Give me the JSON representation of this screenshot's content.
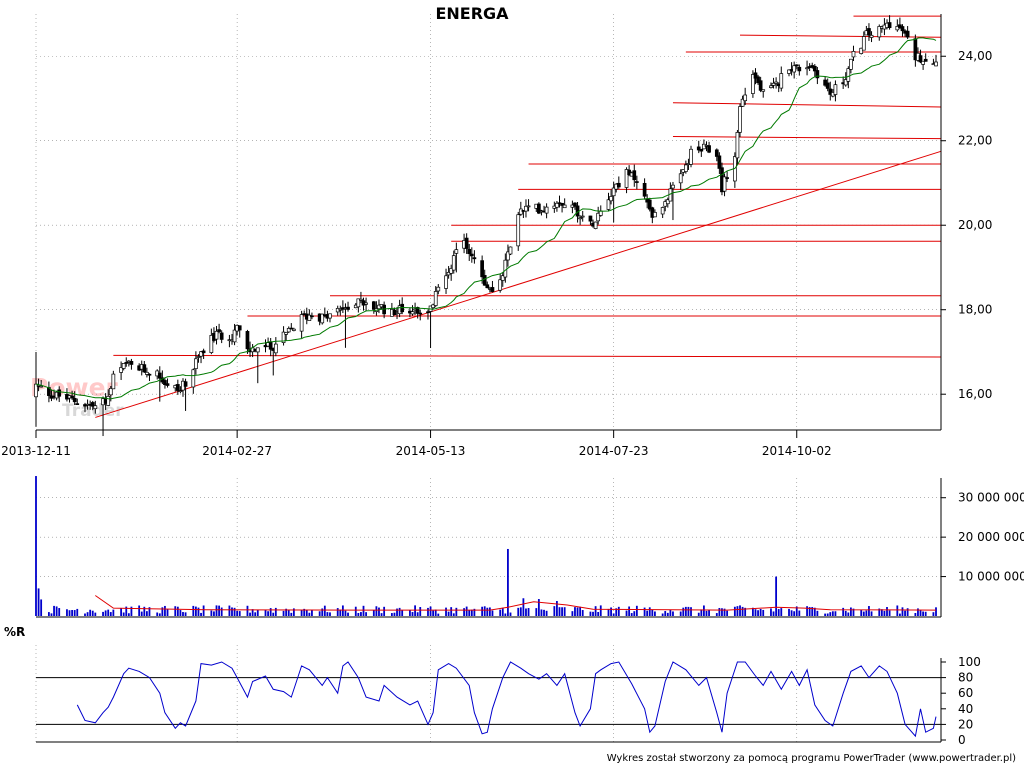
{
  "chart_data": [
    {
      "type": "candlestick",
      "title": "ENERGA",
      "x_tick_labels": [
        "2013-12-11",
        "2014-02-27",
        "2014-05-13",
        "2014-07-23",
        "2014-10-02"
      ],
      "x_dates": [
        "2013-12-11",
        "2014-02-27",
        "2014-05-13",
        "2014-07-23",
        "2014-10-02",
        "2014-11-25"
      ],
      "y_ticks": [
        16,
        18,
        20,
        22,
        24
      ],
      "y_tick_labels": [
        "16,00",
        "18,00",
        "20,00",
        "22,00",
        "24,00"
      ],
      "ylim": [
        15.2,
        25.0
      ],
      "close_path": [
        [
          "2013-12-11",
          16.2
        ],
        [
          "2013-12-17",
          16.0
        ],
        [
          "2013-12-23",
          15.9
        ],
        [
          "2014-01-03",
          15.7
        ],
        [
          "2014-01-08",
          15.9
        ],
        [
          "2014-01-10",
          16.4
        ],
        [
          "2014-01-15",
          16.7
        ],
        [
          "2014-01-20",
          16.6
        ],
        [
          "2014-01-27",
          16.5
        ],
        [
          "2014-01-31",
          16.2
        ],
        [
          "2014-02-05",
          16.1
        ],
        [
          "2014-02-10",
          16.6
        ],
        [
          "2014-02-14",
          17.1
        ],
        [
          "2014-02-19",
          17.4
        ],
        [
          "2014-02-25",
          17.4
        ],
        [
          "2014-02-27",
          17.6
        ],
        [
          "2014-03-03",
          17.0
        ],
        [
          "2014-03-07",
          17.1
        ],
        [
          "2014-03-12",
          17.1
        ],
        [
          "2014-03-18",
          17.4
        ],
        [
          "2014-03-24",
          17.8
        ],
        [
          "2014-03-28",
          17.9
        ],
        [
          "2014-04-02",
          17.8
        ],
        [
          "2014-04-08",
          18.0
        ],
        [
          "2014-04-14",
          18.2
        ],
        [
          "2014-04-18",
          18.1
        ],
        [
          "2014-04-25",
          18.0
        ],
        [
          "2014-05-02",
          18.0
        ],
        [
          "2014-05-09",
          18.0
        ],
        [
          "2014-05-13",
          18.0
        ],
        [
          "2014-05-16",
          18.5
        ],
        [
          "2014-05-21",
          19.1
        ],
        [
          "2014-05-26",
          19.6
        ],
        [
          "2014-05-30",
          19.2
        ],
        [
          "2014-06-04",
          18.5
        ],
        [
          "2014-06-09",
          18.6
        ],
        [
          "2014-06-12",
          19.3
        ],
        [
          "2014-06-16",
          20.3
        ],
        [
          "2014-06-20",
          20.4
        ],
        [
          "2014-06-26",
          20.4
        ],
        [
          "2014-07-02",
          20.6
        ],
        [
          "2014-07-08",
          20.4
        ],
        [
          "2014-07-14",
          20.0
        ],
        [
          "2014-07-18",
          20.4
        ],
        [
          "2014-07-23",
          20.9
        ],
        [
          "2014-07-28",
          21.2
        ],
        [
          "2014-08-01",
          21.1
        ],
        [
          "2014-08-05",
          20.5
        ],
        [
          "2014-08-08",
          20.2
        ],
        [
          "2014-08-12",
          20.6
        ],
        [
          "2014-08-18",
          21.1
        ],
        [
          "2014-08-22",
          21.7
        ],
        [
          "2014-08-27",
          21.8
        ],
        [
          "2014-09-01",
          21.7
        ],
        [
          "2014-09-03",
          20.9
        ],
        [
          "2014-09-08",
          21.6
        ],
        [
          "2014-09-10",
          22.8
        ],
        [
          "2014-09-15",
          23.6
        ],
        [
          "2014-09-19",
          23.1
        ],
        [
          "2014-09-24",
          23.3
        ],
        [
          "2014-09-29",
          23.8
        ],
        [
          "2014-10-02",
          23.7
        ],
        [
          "2014-10-07",
          23.8
        ],
        [
          "2014-10-10",
          23.6
        ],
        [
          "2014-10-15",
          23.1
        ],
        [
          "2014-10-20",
          23.4
        ],
        [
          "2014-10-24",
          24.0
        ],
        [
          "2014-10-29",
          24.5
        ],
        [
          "2014-11-03",
          24.6
        ],
        [
          "2014-11-07",
          24.8
        ],
        [
          "2014-11-12",
          24.6
        ],
        [
          "2014-11-17",
          24.0
        ],
        [
          "2014-11-25",
          23.9
        ]
      ],
      "volatility": 0.25,
      "moving_average": "20-session simple average of closes",
      "colors": {
        "bull": "#ffffff",
        "bear": "#000000",
        "wick": "#000000",
        "ma": "#007a00",
        "grid": "#888888"
      },
      "resistance_lines": [
        {
          "from": "2014-01-10",
          "to": "2014-11-25",
          "y": [
            16.92,
            16.88
          ]
        },
        {
          "from": "2014-03-03",
          "to": "2014-11-25",
          "y": [
            17.85,
            17.85
          ]
        },
        {
          "from": "2014-04-04",
          "to": "2014-11-25",
          "y": [
            18.33,
            18.33
          ]
        },
        {
          "from": "2014-05-21",
          "to": "2014-11-25",
          "y": [
            19.62,
            19.62
          ]
        },
        {
          "from": "2014-05-21",
          "to": "2014-11-25",
          "y": [
            20.0,
            20.0
          ]
        },
        {
          "from": "2014-06-16",
          "to": "2014-11-25",
          "y": [
            20.85,
            20.85
          ]
        },
        {
          "from": "2014-06-20",
          "to": "2014-11-25",
          "y": [
            21.45,
            21.45
          ]
        },
        {
          "from": "2014-08-15",
          "to": "2014-11-25",
          "y": [
            22.1,
            22.05
          ]
        },
        {
          "from": "2014-08-15",
          "to": "2014-11-25",
          "y": [
            22.9,
            22.8
          ]
        },
        {
          "from": "2014-08-20",
          "to": "2014-11-25",
          "y": [
            24.1,
            24.1
          ]
        },
        {
          "from": "2014-09-10",
          "to": "2014-11-25",
          "y": [
            24.5,
            24.45
          ]
        },
        {
          "from": "2014-10-24",
          "to": "2014-11-25",
          "y": [
            24.95,
            24.95
          ]
        }
      ],
      "trend_line": {
        "from": "2014-01-03",
        "to": "2014-11-25",
        "y": [
          15.45,
          21.75
        ]
      },
      "line_color": "#e00000"
    },
    {
      "type": "bar",
      "y_ticks": [
        10000000,
        20000000,
        30000000
      ],
      "y_tick_labels": [
        "10 000 000",
        "20 000 000",
        "30 000 000"
      ],
      "ylim": [
        0,
        35000000
      ],
      "bar_color": "#0000cc",
      "avg_line_color": "#e00000",
      "spikes": [
        [
          "2013-12-11",
          35500000
        ],
        [
          "2013-12-12",
          7000000
        ],
        [
          "2013-12-13",
          4200000
        ],
        [
          "2014-06-12",
          17000000
        ],
        [
          "2014-06-18",
          4500000
        ],
        [
          "2014-06-24",
          4300000
        ],
        [
          "2014-07-01",
          3800000
        ],
        [
          "2014-09-24",
          10000000
        ]
      ],
      "baseline_volume": 1500000,
      "average": [
        [
          "2014-01-03",
          5200000
        ],
        [
          "2014-01-10",
          2000000
        ],
        [
          "2014-02-15",
          1600000
        ],
        [
          "2014-04-15",
          1500000
        ],
        [
          "2014-06-05",
          1500000
        ],
        [
          "2014-06-12",
          2200000
        ],
        [
          "2014-06-22",
          3600000
        ],
        [
          "2014-07-05",
          2800000
        ],
        [
          "2014-07-15",
          1700000
        ],
        [
          "2014-09-05",
          1500000
        ],
        [
          "2014-09-24",
          2200000
        ],
        [
          "2014-10-05",
          2000000
        ],
        [
          "2014-10-15",
          1600000
        ],
        [
          "2014-11-25",
          1500000
        ]
      ]
    },
    {
      "type": "line",
      "label": "%R",
      "y_ticks": [
        0,
        20,
        40,
        60,
        80,
        100
      ],
      "y_tick_labels": [
        "0",
        "20",
        "40",
        "60",
        "80",
        "100"
      ],
      "ylim": [
        0,
        100
      ],
      "reference_lines": [
        20,
        80
      ],
      "series_color": "#0000cc",
      "values": [
        [
          "2013-12-27",
          45
        ],
        [
          "2013-12-30",
          25
        ],
        [
          "2014-01-03",
          22
        ],
        [
          "2014-01-06",
          35
        ],
        [
          "2014-01-08",
          42
        ],
        [
          "2014-01-10",
          55
        ],
        [
          "2014-01-14",
          85
        ],
        [
          "2014-01-16",
          92
        ],
        [
          "2014-01-20",
          88
        ],
        [
          "2014-01-24",
          80
        ],
        [
          "2014-01-28",
          60
        ],
        [
          "2014-01-30",
          35
        ],
        [
          "2014-02-03",
          15
        ],
        [
          "2014-02-05",
          22
        ],
        [
          "2014-02-07",
          18
        ],
        [
          "2014-02-11",
          50
        ],
        [
          "2014-02-13",
          98
        ],
        [
          "2014-02-17",
          96
        ],
        [
          "2014-02-21",
          100
        ],
        [
          "2014-02-25",
          92
        ],
        [
          "2014-02-27",
          80
        ],
        [
          "2014-03-03",
          55
        ],
        [
          "2014-03-05",
          75
        ],
        [
          "2014-03-10",
          82
        ],
        [
          "2014-03-13",
          65
        ],
        [
          "2014-03-17",
          62
        ],
        [
          "2014-03-20",
          55
        ],
        [
          "2014-03-24",
          95
        ],
        [
          "2014-03-27",
          90
        ],
        [
          "2014-04-01",
          70
        ],
        [
          "2014-04-03",
          80
        ],
        [
          "2014-04-07",
          60
        ],
        [
          "2014-04-09",
          95
        ],
        [
          "2014-04-11",
          100
        ],
        [
          "2014-04-15",
          80
        ],
        [
          "2014-04-18",
          55
        ],
        [
          "2014-04-23",
          50
        ],
        [
          "2014-04-25",
          70
        ],
        [
          "2014-04-30",
          55
        ],
        [
          "2014-05-05",
          45
        ],
        [
          "2014-05-08",
          50
        ],
        [
          "2014-05-12",
          20
        ],
        [
          "2014-05-14",
          35
        ],
        [
          "2014-05-16",
          90
        ],
        [
          "2014-05-20",
          98
        ],
        [
          "2014-05-23",
          92
        ],
        [
          "2014-05-28",
          70
        ],
        [
          "2014-05-30",
          35
        ],
        [
          "2014-06-02",
          8
        ],
        [
          "2014-06-04",
          10
        ],
        [
          "2014-06-06",
          40
        ],
        [
          "2014-06-10",
          80
        ],
        [
          "2014-06-13",
          100
        ],
        [
          "2014-06-17",
          92
        ],
        [
          "2014-06-20",
          85
        ],
        [
          "2014-06-24",
          78
        ],
        [
          "2014-06-27",
          85
        ],
        [
          "2014-07-01",
          70
        ],
        [
          "2014-07-04",
          85
        ],
        [
          "2014-07-08",
          35
        ],
        [
          "2014-07-10",
          18
        ],
        [
          "2014-07-14",
          40
        ],
        [
          "2014-07-16",
          85
        ],
        [
          "2014-07-18",
          90
        ],
        [
          "2014-07-22",
          98
        ],
        [
          "2014-07-25",
          100
        ],
        [
          "2014-07-30",
          72
        ],
        [
          "2014-08-04",
          40
        ],
        [
          "2014-08-06",
          10
        ],
        [
          "2014-08-08",
          18
        ],
        [
          "2014-08-12",
          75
        ],
        [
          "2014-08-15",
          100
        ],
        [
          "2014-08-20",
          90
        ],
        [
          "2014-08-25",
          70
        ],
        [
          "2014-08-28",
          80
        ],
        [
          "2014-09-01",
          35
        ],
        [
          "2014-09-03",
          10
        ],
        [
          "2014-09-05",
          60
        ],
        [
          "2014-09-09",
          100
        ],
        [
          "2014-09-12",
          100
        ],
        [
          "2014-09-16",
          82
        ],
        [
          "2014-09-19",
          70
        ],
        [
          "2014-09-22",
          88
        ],
        [
          "2014-09-26",
          65
        ],
        [
          "2014-09-30",
          88
        ],
        [
          "2014-10-03",
          70
        ],
        [
          "2014-10-06",
          90
        ],
        [
          "2014-10-09",
          45
        ],
        [
          "2014-10-13",
          25
        ],
        [
          "2014-10-16",
          18
        ],
        [
          "2014-10-20",
          60
        ],
        [
          "2014-10-23",
          88
        ],
        [
          "2014-10-27",
          95
        ],
        [
          "2014-10-30",
          80
        ],
        [
          "2014-11-03",
          95
        ],
        [
          "2014-11-06",
          88
        ],
        [
          "2014-11-10",
          60
        ],
        [
          "2014-11-13",
          20
        ],
        [
          "2014-11-17",
          5
        ],
        [
          "2014-11-19",
          40
        ],
        [
          "2014-11-21",
          10
        ],
        [
          "2014-11-24",
          15
        ],
        [
          "2014-11-25",
          30
        ]
      ]
    }
  ],
  "watermark": {
    "line1": "Power",
    "line2": "Trader"
  },
  "footer": {
    "credit": "Wykres został stworzony za pomocą programu PowerTrader (www.powertrader.pl)"
  }
}
